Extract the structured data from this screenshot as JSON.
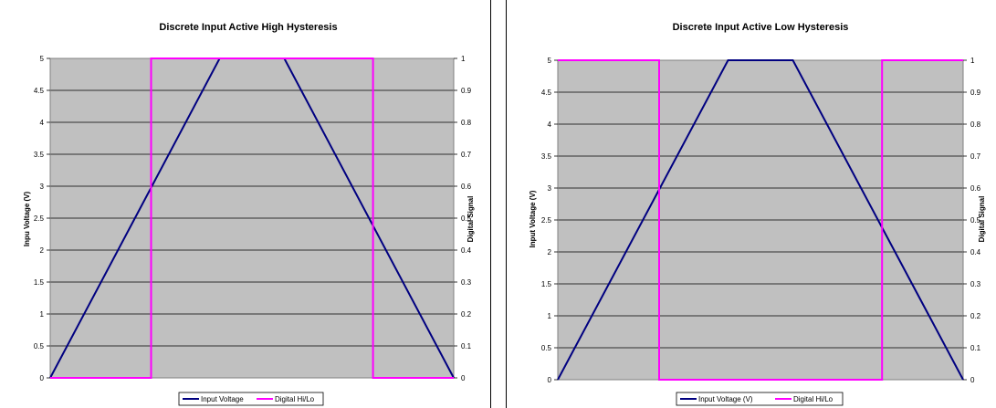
{
  "charts": [
    {
      "title": "Discrete Input Active High Hysteresis",
      "ylabel": "Inpu Voltage (V)",
      "y2label": "Digital Signal",
      "legend": [
        "Input Voltage",
        "Digital Hi/Lo"
      ]
    },
    {
      "title": "Discrete Input Active Low Hysteresis",
      "ylabel": "Input Voltage (V)",
      "y2label": "Digital Signal",
      "legend": [
        "Input Voltage (V)",
        "Digital Hi/Lo"
      ]
    }
  ],
  "chart_data": [
    {
      "type": "line",
      "title": "Discrete Input Active High Hysteresis",
      "ylabel": "Inpu Voltage (V)",
      "y2label": "Digital Signal",
      "xlim": [
        0,
        100
      ],
      "ylim": [
        0,
        5
      ],
      "y2lim": [
        0,
        1
      ],
      "y_ticks": [
        "0",
        "0.5",
        "1",
        "1.5",
        "2",
        "2.5",
        "3",
        "3.5",
        "4",
        "4.5",
        "5"
      ],
      "y2_ticks": [
        "0",
        "0.1",
        "0.2",
        "0.3",
        "0.4",
        "0.5",
        "0.6",
        "0.7",
        "0.8",
        "0.9",
        "1"
      ],
      "grid": true,
      "legend_position": "bottom",
      "colors": {
        "plot_bg": "#c0c0c0",
        "voltage": "#000080",
        "digital": "#ff00ff",
        "grid": "#000000"
      },
      "series": [
        {
          "name": "Input Voltage",
          "axis": "left",
          "x": [
            0,
            42,
            58,
            100
          ],
          "y": [
            0,
            5,
            5,
            0
          ]
        },
        {
          "name": "Digital Hi/Lo",
          "axis": "right",
          "x": [
            0,
            25,
            25,
            80,
            80,
            100
          ],
          "y": [
            0,
            0,
            1,
            1,
            0,
            0
          ]
        }
      ]
    },
    {
      "type": "line",
      "title": "Discrete Input Active Low Hysteresis",
      "ylabel": "Input Voltage (V)",
      "y2label": "Digital Signal",
      "xlim": [
        0,
        100
      ],
      "ylim": [
        0,
        5
      ],
      "y2lim": [
        0,
        1
      ],
      "y_ticks": [
        "0",
        "0.5",
        "1",
        "1.5",
        "2",
        "2.5",
        "3",
        "3.5",
        "4",
        "4.5",
        "5"
      ],
      "y2_ticks": [
        "0",
        "0.1",
        "0.2",
        "0.3",
        "0.4",
        "0.5",
        "0.6",
        "0.7",
        "0.8",
        "0.9",
        "1"
      ],
      "grid": true,
      "legend_position": "bottom",
      "colors": {
        "plot_bg": "#c0c0c0",
        "voltage": "#000080",
        "digital": "#ff00ff",
        "grid": "#000000"
      },
      "series": [
        {
          "name": "Input Voltage (V)",
          "axis": "left",
          "x": [
            0,
            42,
            58,
            100
          ],
          "y": [
            0,
            5,
            5,
            0
          ]
        },
        {
          "name": "Digital Hi/Lo",
          "axis": "right",
          "x": [
            0,
            25,
            25,
            80,
            80,
            100
          ],
          "y": [
            1,
            1,
            0,
            0,
            1,
            1
          ]
        }
      ]
    }
  ]
}
